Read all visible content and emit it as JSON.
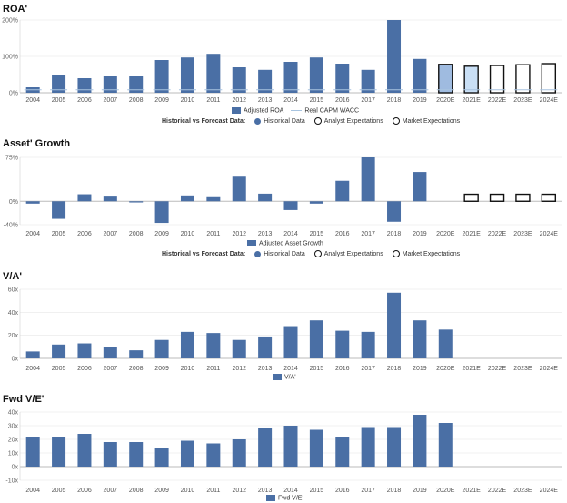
{
  "categories": [
    "2004",
    "2005",
    "2006",
    "2007",
    "2008",
    "2009",
    "2010",
    "2011",
    "2012",
    "2013",
    "2014",
    "2015",
    "2016",
    "2017",
    "2018",
    "2019",
    "2020E",
    "2021E",
    "2022E",
    "2023E",
    "2024E"
  ],
  "colors": {
    "bar": "#4a6fa5",
    "light_bar": "#c9dff5",
    "mid_bar": "#9fbbe0",
    "wacc_line": "#a8c4e0",
    "baseline": "#bbbbbb",
    "outline": "#111111"
  },
  "historical_legend": {
    "label": "Historical vs Forecast Data:",
    "historical": "Historical Data",
    "analyst": "Analyst Expectations",
    "market": "Market Expectations"
  },
  "chart_data": [
    {
      "id": "roa",
      "type": "bar",
      "title": "ROA'",
      "legend": [
        "Adjusted ROA",
        "Real CAPM WACC"
      ],
      "ylim": [
        0,
        200
      ],
      "ticks": [
        "0%",
        "100%",
        "200%"
      ],
      "tick_values": [
        0,
        100,
        200
      ],
      "series": [
        {
          "name": "Adjusted ROA",
          "values": [
            15,
            50,
            40,
            45,
            45,
            90,
            97,
            107,
            70,
            63,
            85,
            97,
            80,
            63,
            200,
            93,
            null,
            null,
            null,
            null,
            null
          ]
        }
      ],
      "forecast": {
        "2020E": {
          "value": 78,
          "style": "analyst-filled"
        },
        "2021E": {
          "value": 73,
          "style": "analyst-light"
        },
        "2022E": {
          "value": 75,
          "style": "market"
        },
        "2023E": {
          "value": 77,
          "style": "market"
        },
        "2024E": {
          "value": 80,
          "style": "market"
        }
      },
      "wacc": 8
    },
    {
      "id": "asset_growth",
      "type": "bar",
      "title": "Asset' Growth",
      "legend": [
        "Adjusted Asset Growth"
      ],
      "ylim": [
        -40,
        75
      ],
      "ticks": [
        "-40%",
        "0%",
        "75%"
      ],
      "tick_values": [
        -40,
        0,
        75
      ],
      "series": [
        {
          "name": "Adjusted Asset Growth",
          "values": [
            -4,
            -30,
            12,
            8,
            -2,
            -37,
            10,
            7,
            42,
            13,
            -15,
            -4,
            35,
            75,
            -35,
            50,
            null,
            null,
            null,
            null,
            null
          ]
        }
      ],
      "forecast": {
        "2021E": {
          "value": 12,
          "style": "market"
        },
        "2022E": {
          "value": 12,
          "style": "market"
        },
        "2023E": {
          "value": 12,
          "style": "market"
        },
        "2024E": {
          "value": 12,
          "style": "market"
        }
      }
    },
    {
      "id": "va",
      "type": "bar",
      "title": "V/A'",
      "legend": [
        "V/A'"
      ],
      "ylim": [
        0,
        60
      ],
      "ticks": [
        "0x",
        "20x",
        "40x",
        "60x"
      ],
      "tick_values": [
        0,
        20,
        40,
        60
      ],
      "series": [
        {
          "name": "V/A'",
          "values": [
            6,
            12,
            13,
            10,
            7,
            16,
            23,
            22,
            16,
            19,
            28,
            33,
            24,
            23,
            57,
            33,
            25,
            null,
            null,
            null,
            null
          ]
        }
      ]
    },
    {
      "id": "fwd_ve",
      "type": "bar",
      "title": "Fwd V/E'",
      "legend": [
        "Fwd V/E'"
      ],
      "ylim": [
        -10,
        40
      ],
      "ticks": [
        "-10x",
        "0x",
        "10x",
        "20x",
        "30x",
        "40x"
      ],
      "tick_values": [
        -10,
        0,
        10,
        20,
        30,
        40
      ],
      "series": [
        {
          "name": "Fwd V/E'",
          "values": [
            22,
            22,
            24,
            18,
            18,
            14,
            19,
            17,
            20,
            28,
            30,
            27,
            22,
            29,
            29,
            38,
            32,
            null,
            null,
            null,
            null
          ]
        }
      ]
    }
  ]
}
